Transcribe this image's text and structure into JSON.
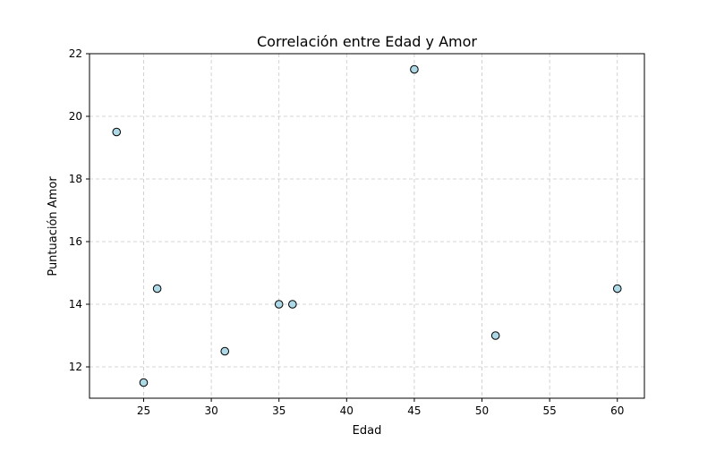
{
  "chart_data": {
    "type": "scatter",
    "title": "Correlación entre Edad y Amor",
    "xlabel": "Edad",
    "ylabel": "Puntuación Amor",
    "xlim": [
      21,
      62
    ],
    "ylim": [
      11,
      22
    ],
    "xticks": [
      25,
      30,
      35,
      40,
      45,
      50,
      55,
      60
    ],
    "yticks": [
      12,
      14,
      16,
      18,
      20,
      22
    ],
    "grid": true,
    "grid_style": "dashed",
    "marker_fill": "#add8e6",
    "marker_edge": "#000000",
    "points": [
      {
        "x": 23,
        "y": 19.5
      },
      {
        "x": 25,
        "y": 11.5
      },
      {
        "x": 26,
        "y": 14.5
      },
      {
        "x": 31,
        "y": 12.5
      },
      {
        "x": 35,
        "y": 14
      },
      {
        "x": 36,
        "y": 14
      },
      {
        "x": 45,
        "y": 21.5
      },
      {
        "x": 51,
        "y": 13
      },
      {
        "x": 60,
        "y": 14.5
      }
    ]
  }
}
